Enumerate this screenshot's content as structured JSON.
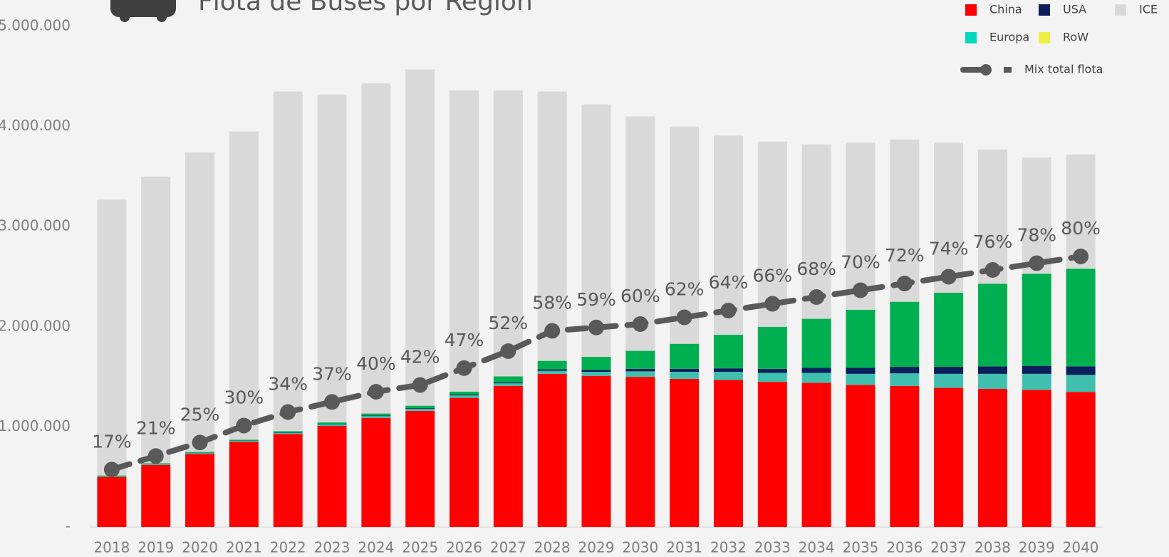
{
  "chart_data": {
    "type": "bar",
    "stacked": true,
    "title": "Flota de Buses por Región",
    "categories": [
      "2018",
      "2019",
      "2020",
      "2021",
      "2022",
      "2023",
      "2024",
      "2025",
      "2026",
      "2027",
      "2028",
      "2029",
      "2030",
      "2031",
      "2032",
      "2033",
      "2034",
      "2035",
      "2036",
      "2037",
      "2038",
      "2039",
      "2040"
    ],
    "series": [
      {
        "name": "China",
        "color": "#ff0000",
        "values": [
          500000,
          620000,
          730000,
          850000,
          930000,
          1010000,
          1090000,
          1160000,
          1290000,
          1410000,
          1530000,
          1510000,
          1500000,
          1480000,
          1470000,
          1450000,
          1440000,
          1420000,
          1410000,
          1390000,
          1380000,
          1370000,
          1350000
        ]
      },
      {
        "name": "Europa",
        "color": "#40bfae",
        "legend_color": "#00d9c0",
        "values": [
          5000,
          7000,
          8000,
          10000,
          12000,
          15000,
          18000,
          20000,
          25000,
          25000,
          30000,
          40000,
          55000,
          70000,
          80000,
          90000,
          100000,
          110000,
          125000,
          140000,
          150000,
          160000,
          170000
        ]
      },
      {
        "name": "USA",
        "color": "#0a1f5c",
        "values": [
          2000,
          2000,
          3000,
          3000,
          4000,
          5000,
          6000,
          7000,
          8000,
          10000,
          15000,
          20000,
          25000,
          30000,
          35000,
          40000,
          50000,
          60000,
          65000,
          70000,
          75000,
          80000,
          85000
        ]
      },
      {
        "name": "RoW",
        "color": "#00b050",
        "legend_color": "#eeee44",
        "values": [
          8000,
          8000,
          10000,
          10000,
          12000,
          15000,
          20000,
          25000,
          30000,
          60000,
          85000,
          130000,
          180000,
          250000,
          335000,
          420000,
          490000,
          580000,
          650000,
          740000,
          825000,
          920000,
          975000
        ]
      },
      {
        "name": "ICE",
        "color": "#d9d9d9",
        "values": [
          2755000,
          2863000,
          2989000,
          3077000,
          3392000,
          3275000,
          3296000,
          3358000,
          3007000,
          2855000,
          2690000,
          2520000,
          2340000,
          2170000,
          1990000,
          1850000,
          1740000,
          1670000,
          1620000,
          1500000,
          1340000,
          1160000,
          1140000
        ]
      },
      {
        "name": "Mix total flota",
        "type": "line",
        "axis": "y2",
        "color": "#595959",
        "values": [
          17,
          21,
          25,
          30,
          34,
          37,
          40,
          42,
          47,
          52,
          58,
          59,
          60,
          62,
          64,
          66,
          68,
          70,
          72,
          74,
          76,
          78,
          80
        ],
        "value_labels": [
          "17%",
          "21%",
          "25%",
          "30%",
          "34%",
          "37%",
          "40%",
          "42%",
          "47%",
          "52%",
          "58%",
          "59%",
          "60%",
          "62%",
          "64%",
          "66%",
          "68%",
          "70%",
          "72%",
          "74%",
          "76%",
          "78%",
          "80%"
        ]
      }
    ],
    "ylim": [
      0,
      5000000
    ],
    "yticks": [
      {
        "value": 0,
        "label": "-"
      },
      {
        "value": 1000000,
        "label": "1.000.000"
      },
      {
        "value": 2000000,
        "label": "2.000.000"
      },
      {
        "value": 3000000,
        "label": "3.000.000"
      },
      {
        "value": 4000000,
        "label": "4.000.000"
      },
      {
        "value": 5000000,
        "label": "5.000.000"
      }
    ],
    "y2lim": [
      0,
      148
    ],
    "grid": false,
    "legend": "top-right"
  }
}
